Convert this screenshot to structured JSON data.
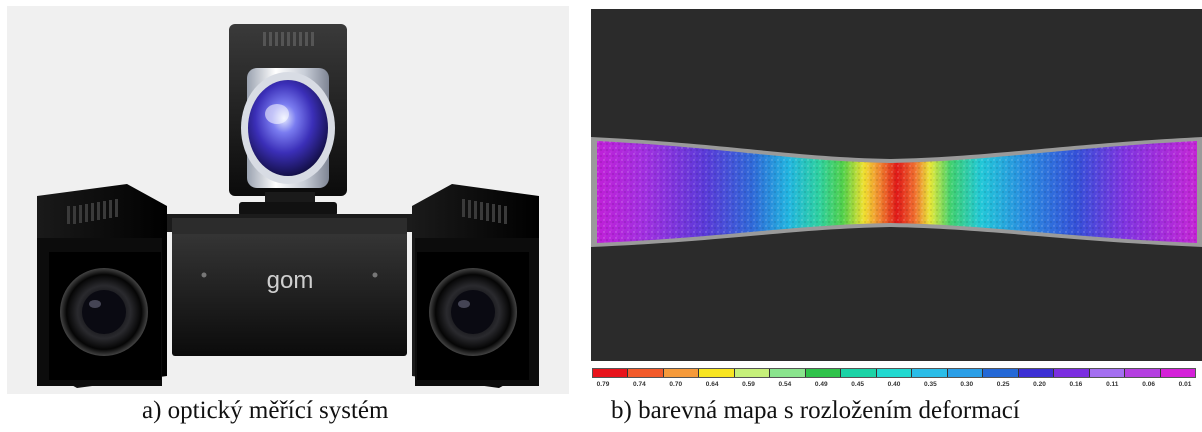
{
  "panel_a": {
    "brand_logo": "gom",
    "caption": "a)  optický měřící systém"
  },
  "panel_b": {
    "caption": "b)  barevná mapa s rozložením deformací",
    "scale": {
      "labels": [
        "0.79",
        "0.74",
        "0.70",
        "0.64",
        "0.59",
        "0.54",
        "0.49",
        "0.45",
        "0.40",
        "0.35",
        "0.30",
        "0.25",
        "0.20",
        "0.16",
        "0.11",
        "0.06",
        "0.01"
      ],
      "colors": [
        "#e8131b",
        "#f25a2a",
        "#f59a3b",
        "#f8e521",
        "#c6f07a",
        "#8ae48d",
        "#2fc24a",
        "#1bd3a6",
        "#22d9d0",
        "#2bbde8",
        "#2a9ee6",
        "#2468d6",
        "#3c2fd4",
        "#7b2ee0",
        "#a46ff0",
        "#b43fe0",
        "#d420d8"
      ]
    }
  }
}
